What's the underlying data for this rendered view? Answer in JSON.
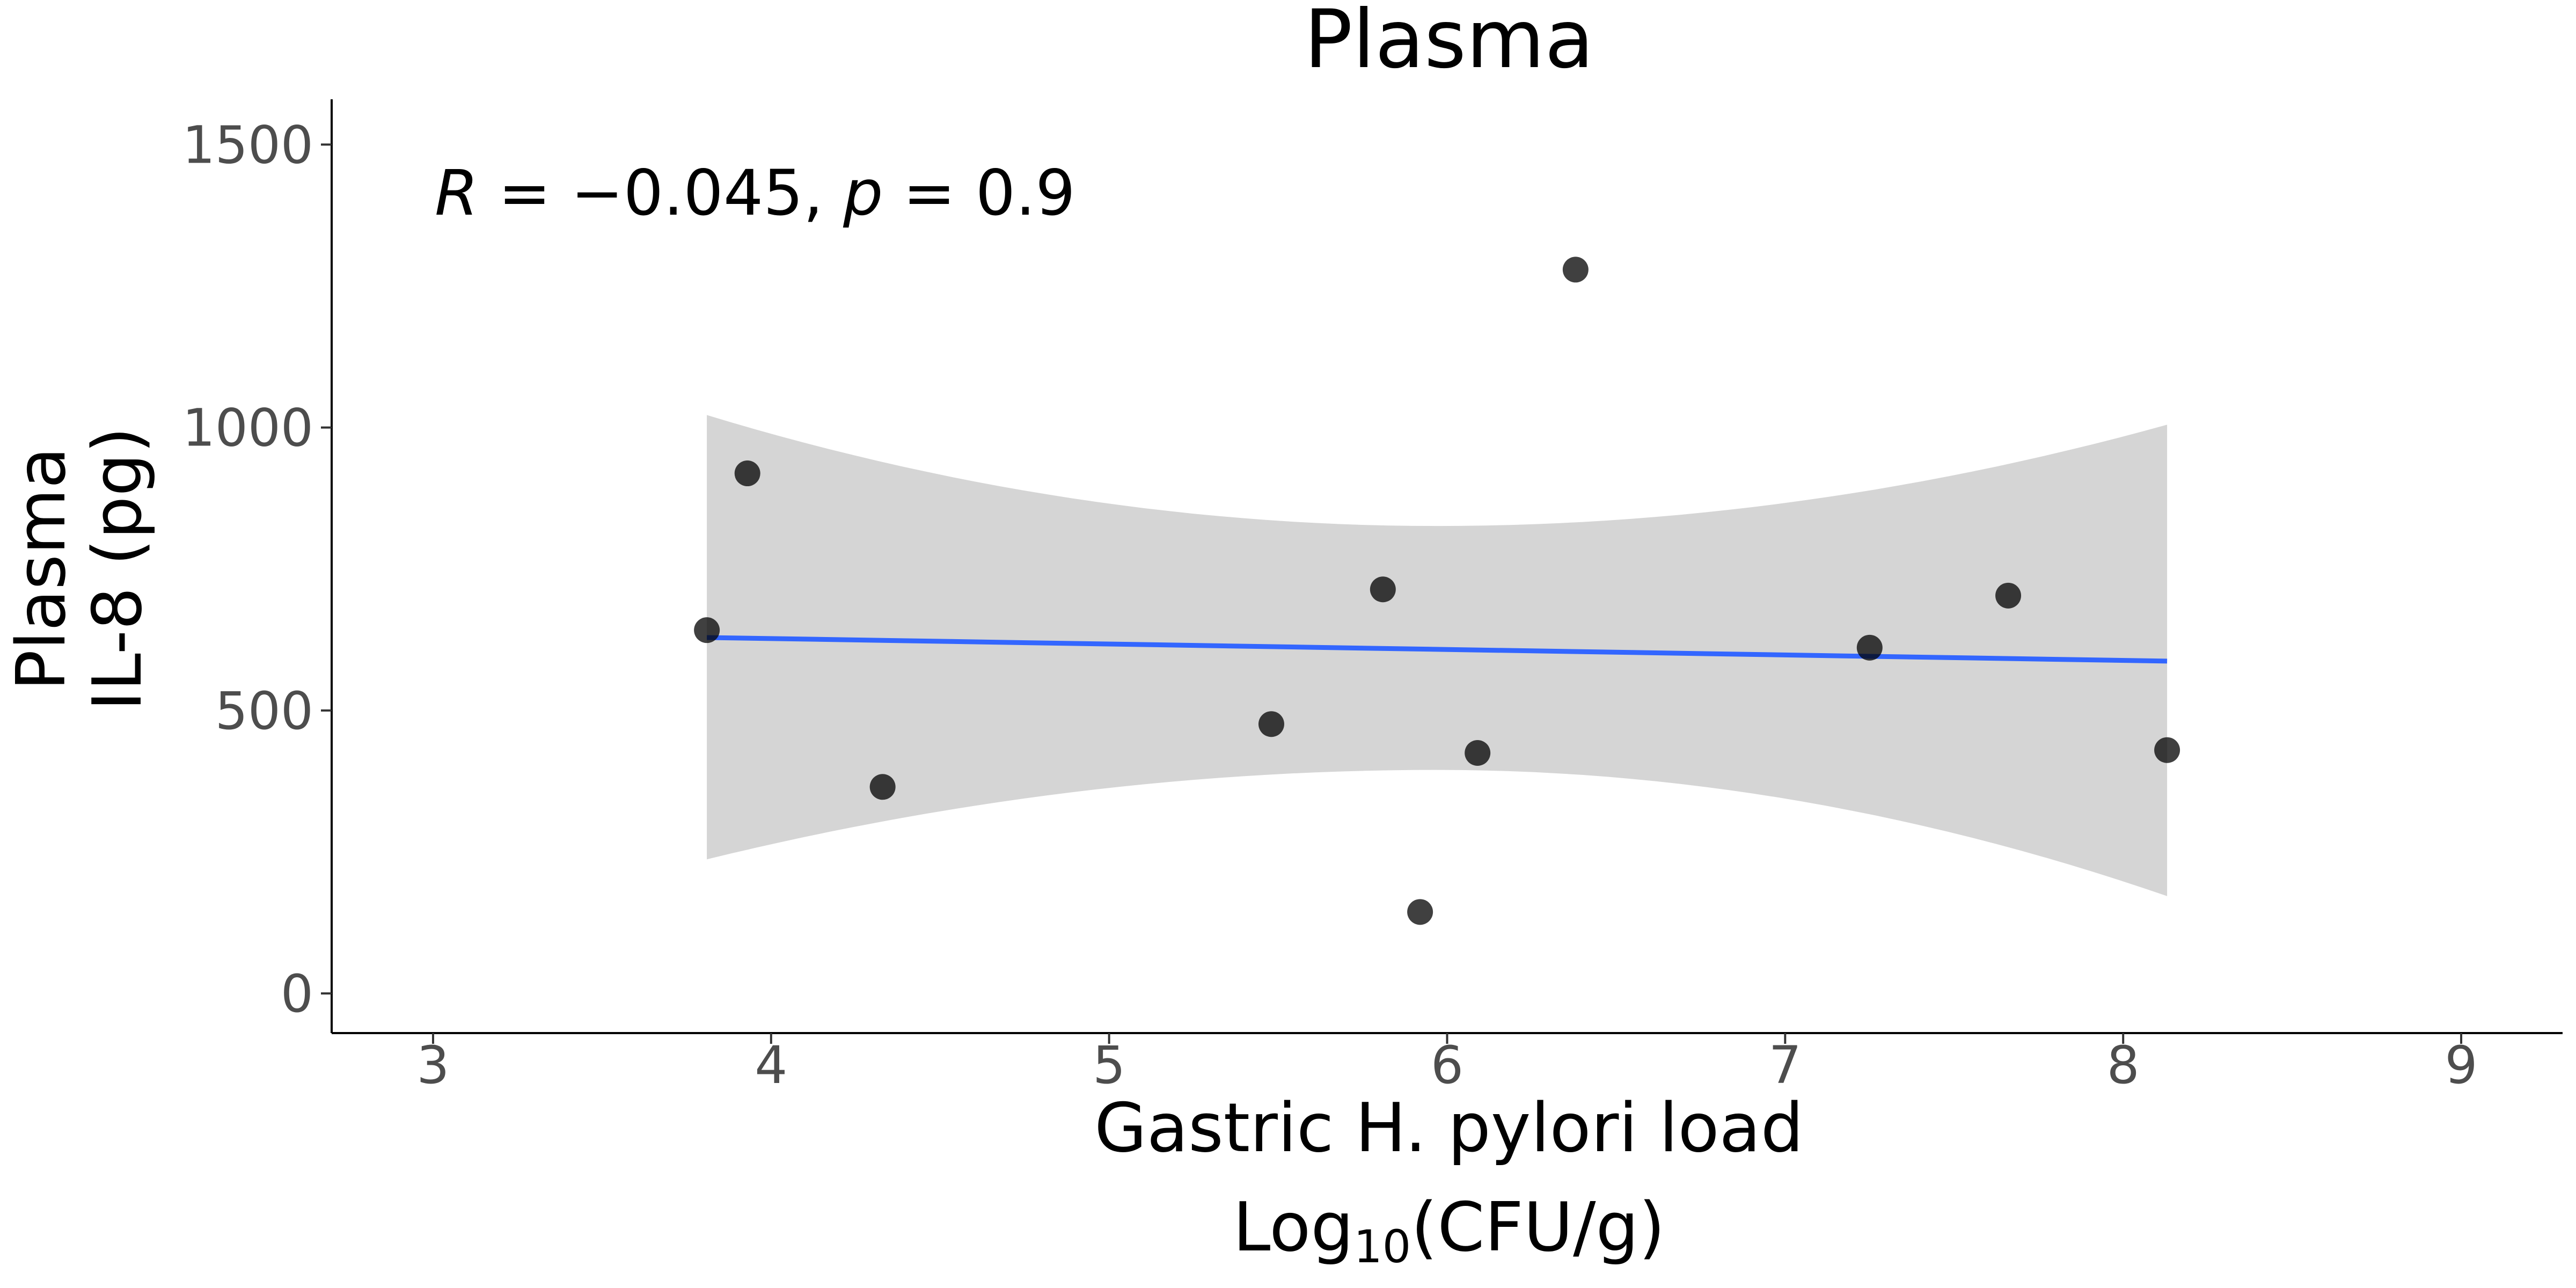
{
  "chart_data": {
    "type": "scatter",
    "title": "Plasma",
    "xlabel_line1": "Gastric H. pylori load",
    "xlabel_line2_base": "Log",
    "xlabel_line2_sub": "10",
    "xlabel_line2_rest": "(CFU/g)",
    "ylabel_line1": "Plasma",
    "ylabel_line2": "IL-8 (pg)",
    "xlim": [
      2.7,
      9.3
    ],
    "ylim": [
      -70,
      1580
    ],
    "xticks": [
      3,
      4,
      5,
      6,
      7,
      8,
      9
    ],
    "xtick_labels": [
      "3",
      "4",
      "5",
      "6",
      "7",
      "8",
      "9"
    ],
    "yticks": [
      0,
      500,
      1000,
      1500
    ],
    "ytick_labels": [
      "0",
      "500",
      "1000",
      "1500"
    ],
    "points": [
      {
        "x": 3.81,
        "y": 642
      },
      {
        "x": 3.93,
        "y": 919
      },
      {
        "x": 4.33,
        "y": 365
      },
      {
        "x": 5.48,
        "y": 476
      },
      {
        "x": 5.81,
        "y": 714
      },
      {
        "x": 5.92,
        "y": 144
      },
      {
        "x": 6.09,
        "y": 425
      },
      {
        "x": 6.38,
        "y": 1279
      },
      {
        "x": 7.25,
        "y": 611
      },
      {
        "x": 7.66,
        "y": 703
      },
      {
        "x": 8.13,
        "y": 430
      }
    ],
    "regression": {
      "x_range": [
        3.81,
        8.13
      ],
      "intercept": 665.7,
      "slope": -9.65,
      "color": "#3366ff"
    },
    "confidence_band": {
      "x_start": 3.81,
      "x_end": 8.13,
      "upper_start": 1022,
      "upper_min": 826,
      "upper_end": 1005,
      "lower_start": 237,
      "lower_max": 395,
      "lower_end": 172,
      "color": "#d5d5d5"
    },
    "annotation": {
      "r_label": "R",
      "r_text": " = −0.045, ",
      "p_label": "p",
      "p_text": " = 0.9"
    },
    "point_color": "#000000",
    "grid": false
  }
}
